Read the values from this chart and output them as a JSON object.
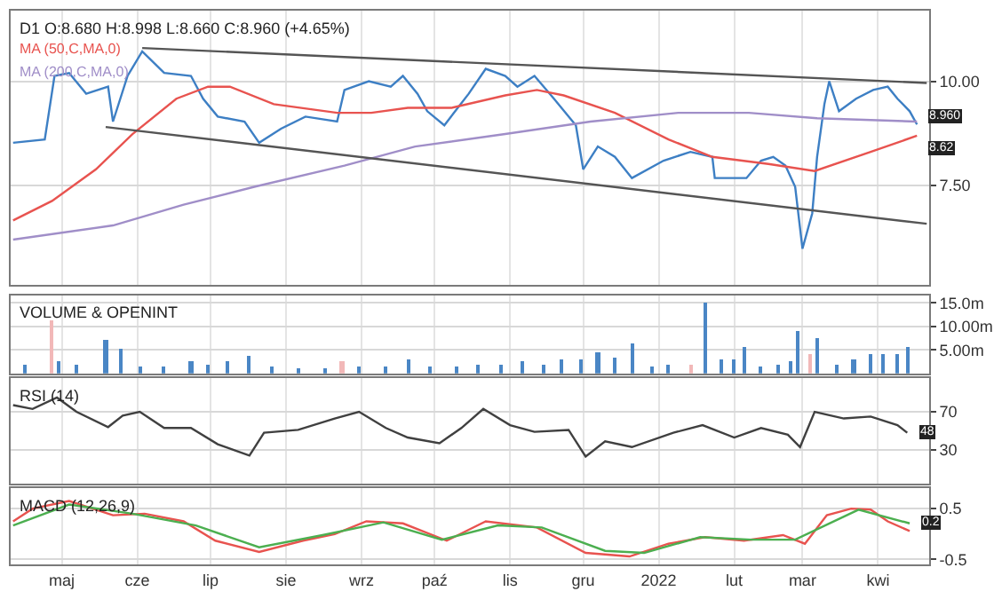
{
  "chart_data": [
    {
      "type": "line",
      "title": "D1 O:8.680 H:8.998 L:8.660 C:8.960 (+4.65%)",
      "grid": true,
      "tick_labels": "y",
      "xlim": [
        "2021-04-10",
        "2022-04-22"
      ],
      "xticks": [
        {
          "value": "2021-05-01",
          "label": null
        },
        {
          "value": "2021-06-01",
          "label": null
        },
        {
          "value": "2021-07-01",
          "label": null
        },
        {
          "value": "2021-08-01",
          "label": null
        },
        {
          "value": "2021-09-01",
          "label": null
        },
        {
          "value": "2021-10-01",
          "label": null
        },
        {
          "value": "2021-11-01",
          "label": null
        },
        {
          "value": "2021-12-01",
          "label": null
        },
        {
          "value": "2022-01-01",
          "label": null
        },
        {
          "value": "2022-02-01",
          "label": null
        },
        {
          "value": "2022-03-01",
          "label": null
        },
        {
          "value": "2022-04-01",
          "label": null
        }
      ],
      "ylim": [
        5.1,
        11.7
      ],
      "yticks": [
        {
          "value": 7.5,
          "label": "7.50"
        },
        {
          "value": 10,
          "label": "10.00"
        }
      ],
      "series": [
        {
          "color": "#3d7fc4",
          "x": [
            "2021-04-11",
            "2021-04-24",
            "2021-04-28",
            "2021-05-04",
            "2021-05-11",
            "2021-05-20",
            "2021-05-22",
            "2021-05-28",
            "2021-06-03",
            "2021-06-12",
            "2021-06-23",
            "2021-06-28",
            "2021-07-04",
            "2021-07-15",
            "2021-07-21",
            "2021-07-30",
            "2021-08-09",
            "2021-08-22",
            "2021-08-25",
            "2021-09-04",
            "2021-09-13",
            "2021-09-18",
            "2021-09-24",
            "2021-09-28",
            "2021-10-05",
            "2021-10-15",
            "2021-10-22",
            "2021-10-30",
            "2021-11-04",
            "2021-11-11",
            "2021-11-19",
            "2021-11-28",
            "2021-12-01",
            "2021-12-07",
            "2021-12-14",
            "2021-12-21",
            "2022-01-03",
            "2022-01-14",
            "2022-01-23",
            "2022-01-24",
            "2022-02-06",
            "2022-02-12",
            "2022-02-17",
            "2022-02-22",
            "2022-02-26",
            "2022-03-01",
            "2022-03-05",
            "2022-03-07",
            "2022-03-10",
            "2022-03-12",
            "2022-03-16",
            "2022-03-23",
            "2022-03-30",
            "2022-04-05",
            "2022-04-09",
            "2022-04-14",
            "2022-04-17"
          ],
          "values": [
            8.52,
            8.6,
            10.13,
            10.2,
            9.7,
            9.87,
            9.03,
            10.13,
            10.72,
            10.2,
            10.13,
            9.58,
            9.15,
            9.03,
            8.52,
            8.86,
            9.15,
            9.03,
            9.79,
            10.0,
            9.87,
            10.13,
            9.7,
            9.28,
            8.94,
            9.7,
            10.3,
            10.13,
            9.87,
            10.13,
            9.58,
            8.94,
            7.88,
            8.43,
            8.18,
            7.67,
            8.09,
            8.3,
            8.18,
            7.67,
            7.67,
            8.09,
            8.18,
            7.97,
            7.46,
            5.97,
            6.82,
            8.18,
            9.45,
            10.0,
            9.28,
            9.58,
            9.79,
            9.87,
            9.58,
            9.28,
            8.96
          ]
        },
        {
          "name": "MA (50,C,MA,0)",
          "color": "#e8534f",
          "x": [
            "2021-04-11",
            "2021-04-27",
            "2021-05-15",
            "2021-05-30",
            "2021-06-17",
            "2021-06-30",
            "2021-07-09",
            "2021-07-27",
            "2021-08-22",
            "2021-09-05",
            "2021-09-20",
            "2021-10-08",
            "2021-10-30",
            "2021-11-12",
            "2021-11-23",
            "2021-12-14",
            "2022-01-05",
            "2022-01-23",
            "2022-02-15",
            "2022-03-06",
            "2022-03-29",
            "2022-04-17"
          ],
          "values": [
            6.65,
            7.12,
            7.88,
            8.73,
            9.58,
            9.87,
            9.87,
            9.45,
            9.24,
            9.24,
            9.36,
            9.36,
            9.66,
            9.79,
            9.66,
            9.24,
            8.6,
            8.18,
            8.01,
            7.84,
            8.3,
            8.69
          ]
        },
        {
          "name": "MA (200,C,MA,0)",
          "color": "#a08ec8",
          "x": [
            "2021-04-11",
            "2021-05-22",
            "2021-06-20",
            "2021-07-19",
            "2021-08-25",
            "2021-09-23",
            "2021-10-30",
            "2021-12-04",
            "2022-01-09",
            "2022-02-07",
            "2022-03-07",
            "2022-04-17"
          ],
          "values": [
            6.19,
            6.53,
            7.03,
            7.46,
            7.97,
            8.43,
            8.73,
            9.03,
            9.24,
            9.24,
            9.11,
            9.03
          ]
        },
        {
          "color": "#555555",
          "x": [
            "2021-06-03",
            "2022-04-21"
          ],
          "values": [
            10.8,
            9.96
          ]
        },
        {
          "color": "#555555",
          "x": [
            "2021-05-19",
            "2022-04-21"
          ],
          "values": [
            8.9,
            6.57
          ]
        }
      ],
      "annotations": [
        {
          "text": "8.960",
          "x": "2022-04-17",
          "y": 8.96
        },
        {
          "text": "8.62",
          "x": "2022-04-17",
          "y": 8.62
        }
      ]
    },
    {
      "type": "bar",
      "title": "VOLUME & OPENINT",
      "grid": true,
      "tick_labels": "y",
      "xlim": [
        "2021-04-10",
        "2022-04-22"
      ],
      "xticks": [
        {
          "value": "2021-05-01",
          "label": null
        },
        {
          "value": "2021-06-01",
          "label": null
        },
        {
          "value": "2021-07-01",
          "label": null
        },
        {
          "value": "2021-08-01",
          "label": null
        },
        {
          "value": "2021-09-01",
          "label": null
        },
        {
          "value": "2021-10-01",
          "label": null
        },
        {
          "value": "2021-11-01",
          "label": null
        },
        {
          "value": "2021-12-01",
          "label": null
        },
        {
          "value": "2022-01-01",
          "label": null
        },
        {
          "value": "2022-02-01",
          "label": null
        },
        {
          "value": "2022-03-01",
          "label": null
        },
        {
          "value": "2022-04-01",
          "label": null
        }
      ],
      "ylim": [
        0,
        16.6
      ],
      "yticks": [
        {
          "value": 5,
          "label": "5.00m"
        },
        {
          "value": 10,
          "label": "10.00m"
        },
        {
          "value": 15,
          "label": "15.0m"
        }
      ],
      "x": [
        "2021-04-16",
        "2021-04-27",
        "2021-04-30",
        "2021-05-07",
        "2021-05-19",
        "2021-05-25",
        "2021-06-02",
        "2021-06-12",
        "2021-06-23",
        "2021-06-30",
        "2021-07-08",
        "2021-07-17",
        "2021-07-26",
        "2021-08-06",
        "2021-08-17",
        "2021-08-24",
        "2021-08-31",
        "2021-09-11",
        "2021-09-20",
        "2021-09-29",
        "2021-10-10",
        "2021-10-19",
        "2021-10-28",
        "2021-11-06",
        "2021-11-15",
        "2021-11-22",
        "2021-11-30",
        "2021-12-07",
        "2021-12-14",
        "2021-12-21",
        "2021-12-29",
        "2022-01-05",
        "2022-01-14",
        "2022-01-20",
        "2022-01-27",
        "2022-02-01",
        "2022-02-05",
        "2022-02-12",
        "2022-02-19",
        "2022-02-24",
        "2022-02-27",
        "2022-03-04",
        "2022-03-07",
        "2022-03-15",
        "2022-03-22",
        "2022-03-29",
        "2022-04-03",
        "2022-04-09",
        "2022-04-13"
      ],
      "values": [
        2.0,
        11.3,
        2.5,
        2.0,
        7.3,
        5.1,
        1.5,
        1.5,
        2.5,
        2.0,
        2.5,
        3.7,
        1.5,
        1.0,
        1.0,
        2.5,
        1.5,
        1.5,
        3.0,
        1.5,
        1.5,
        2.0,
        2.0,
        2.5,
        2.0,
        3.0,
        3.0,
        4.5,
        3.5,
        6.5,
        1.5,
        2.0,
        2.0,
        15.1,
        3.0,
        3.0,
        5.8,
        1.5,
        2.0,
        2.5,
        9.2,
        4.0,
        7.5,
        2.0,
        3.0,
        4.0,
        4.0,
        4.0,
        5.8
      ],
      "colors": [
        "#4a86c5",
        "#f2b8b8",
        "#4a86c5",
        "#4a86c5",
        "#4a86c5",
        "#4a86c5",
        "#4a86c5",
        "#4a86c5",
        "#4a86c5",
        "#4a86c5",
        "#4a86c5",
        "#4a86c5",
        "#4a86c5",
        "#4a86c5",
        "#4a86c5",
        "#f2b8b8",
        "#4a86c5",
        "#4a86c5",
        "#4a86c5",
        "#4a86c5",
        "#4a86c5",
        "#4a86c5",
        "#4a86c5",
        "#4a86c5",
        "#4a86c5",
        "#4a86c5",
        "#4a86c5",
        "#4a86c5",
        "#4a86c5",
        "#4a86c5",
        "#4a86c5",
        "#4a86c5",
        "#f2b8b8",
        "#4a86c5",
        "#4a86c5",
        "#4a86c5",
        "#4a86c5",
        "#4a86c5",
        "#4a86c5",
        "#4a86c5",
        "#4a86c5",
        "#f2b8b8",
        "#4a86c5",
        "#4a86c5",
        "#4a86c5",
        "#4a86c5",
        "#4a86c5",
        "#4a86c5",
        "#4a86c5"
      ]
    },
    {
      "type": "line",
      "title": "RSI (14)",
      "grid": true,
      "tick_labels": "y",
      "xlim": [
        "2021-04-10",
        "2022-04-22"
      ],
      "xticks": [
        {
          "value": "2021-05-01",
          "label": null
        },
        {
          "value": "2021-06-01",
          "label": null
        },
        {
          "value": "2021-07-01",
          "label": null
        },
        {
          "value": "2021-08-01",
          "label": null
        },
        {
          "value": "2021-09-01",
          "label": null
        },
        {
          "value": "2021-10-01",
          "label": null
        },
        {
          "value": "2021-11-01",
          "label": null
        },
        {
          "value": "2021-12-01",
          "label": null
        },
        {
          "value": "2022-01-01",
          "label": null
        },
        {
          "value": "2022-02-01",
          "label": null
        },
        {
          "value": "2022-03-01",
          "label": null
        },
        {
          "value": "2022-04-01",
          "label": null
        }
      ],
      "ylim": [
        -5,
        105
      ],
      "yticks": [
        30,
        70
      ],
      "x": [
        "2021-04-11",
        "2021-04-19",
        "2021-04-29",
        "2021-05-07",
        "2021-05-20",
        "2021-05-26",
        "2021-06-02",
        "2021-06-12",
        "2021-06-23",
        "2021-07-04",
        "2021-07-17",
        "2021-07-23",
        "2021-08-06",
        "2021-08-21",
        "2021-08-31",
        "2021-09-11",
        "2021-09-20",
        "2021-10-03",
        "2021-10-12",
        "2021-10-21",
        "2021-11-01",
        "2021-11-11",
        "2021-11-25",
        "2021-12-02",
        "2021-12-10",
        "2021-12-21",
        "2022-01-07",
        "2022-01-19",
        "2022-02-01",
        "2022-02-12",
        "2022-02-23",
        "2022-02-28",
        "2022-03-06",
        "2022-03-18",
        "2022-03-29",
        "2022-04-09",
        "2022-04-13"
      ],
      "series": [
        {
          "color": "#404040",
          "values": [
            77,
            73,
            85,
            70,
            54,
            66,
            70,
            53,
            53,
            36,
            24,
            48,
            51,
            63,
            70,
            53,
            43,
            37,
            53,
            73,
            56,
            49,
            51,
            23,
            39,
            33,
            48,
            56,
            43,
            53,
            46,
            33,
            70,
            63,
            65,
            56,
            48
          ]
        }
      ],
      "annotations": [
        {
          "text": "48",
          "x": "2022-04-13",
          "y": 48
        }
      ]
    },
    {
      "type": "line",
      "title": "MACD (12,26,9)",
      "grid": true,
      "xlim": [
        "2021-04-10",
        "2022-04-22"
      ],
      "xticks": [
        {
          "value": "2021-05-01",
          "label": "maj"
        },
        {
          "value": "2021-06-01",
          "label": "cze"
        },
        {
          "value": "2021-07-01",
          "label": "lip"
        },
        {
          "value": "2021-08-01",
          "label": "sie"
        },
        {
          "value": "2021-09-01",
          "label": "wrz"
        },
        {
          "value": "2021-10-01",
          "label": "paź"
        },
        {
          "value": "2021-11-01",
          "label": "lis"
        },
        {
          "value": "2021-12-01",
          "label": "gru"
        },
        {
          "value": "2022-01-01",
          "label": "2022"
        },
        {
          "value": "2022-02-01",
          "label": "lut"
        },
        {
          "value": "2022-03-01",
          "label": "mar"
        },
        {
          "value": "2022-04-01",
          "label": "kwi"
        }
      ],
      "ylim": [
        -0.6,
        0.9
      ],
      "yticks": [
        0.5,
        -0.5
      ],
      "series": [
        {
          "color": "#e8534f",
          "x": [
            "2021-04-11",
            "2021-04-19",
            "2021-05-04",
            "2021-05-22",
            "2021-06-04",
            "2021-06-20",
            "2021-07-03",
            "2021-07-21",
            "2021-08-08",
            "2021-08-21",
            "2021-09-03",
            "2021-09-18",
            "2021-10-06",
            "2021-10-22",
            "2021-11-12",
            "2021-12-02",
            "2021-12-20",
            "2022-01-05",
            "2022-01-20",
            "2022-02-05",
            "2022-02-21",
            "2022-03-02",
            "2022-03-11",
            "2022-03-21",
            "2022-03-29",
            "2022-04-05",
            "2022-04-14"
          ],
          "values": [
            0.25,
            0.5,
            0.65,
            0.37,
            0.4,
            0.25,
            -0.13,
            -0.35,
            -0.13,
            0,
            0.25,
            0.21,
            -0.13,
            0.25,
            0.13,
            -0.37,
            -0.44,
            -0.19,
            -0.06,
            -0.13,
            -0.02,
            -0.19,
            0.37,
            0.5,
            0.48,
            0.25,
            0.06
          ]
        },
        {
          "color": "#4caf50",
          "x": [
            "2021-04-11",
            "2021-05-04",
            "2021-05-30",
            "2021-06-25",
            "2021-07-21",
            "2021-08-16",
            "2021-09-10",
            "2021-10-04",
            "2021-10-27",
            "2021-11-14",
            "2021-12-10",
            "2021-12-26",
            "2022-01-18",
            "2022-02-08",
            "2022-02-26",
            "2022-03-24",
            "2022-04-14"
          ],
          "values": [
            0.17,
            0.58,
            0.4,
            0.17,
            -0.26,
            -0.02,
            0.23,
            -0.11,
            0.17,
            0.13,
            -0.33,
            -0.37,
            -0.06,
            -0.11,
            -0.11,
            0.48,
            0.21
          ]
        }
      ],
      "annotations": [
        {
          "text": "0.2",
          "x": "2022-04-14",
          "y": 0.21
        }
      ]
    }
  ]
}
